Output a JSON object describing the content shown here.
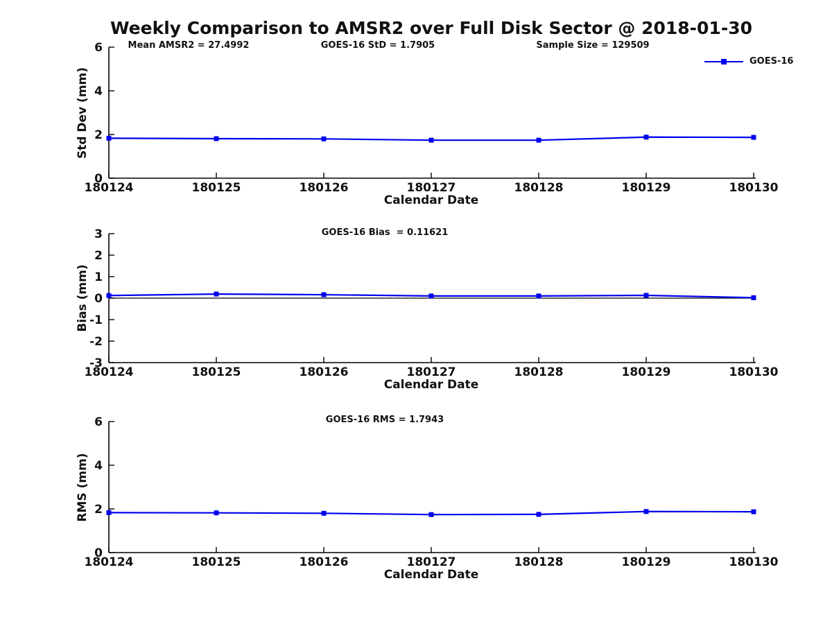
{
  "title": "Weekly Comparison to AMSR2 over Full Disk Sector @ 2018-01-30",
  "legend": {
    "label": "GOES-16",
    "color": "#0000EE"
  },
  "chart_data": [
    {
      "type": "line",
      "categories": [
        "180124",
        "180125",
        "180126",
        "180127",
        "180128",
        "180129",
        "180130"
      ],
      "series": [
        {
          "name": "GOES-16",
          "values": [
            1.83,
            1.81,
            1.8,
            1.74,
            1.74,
            1.88,
            1.87
          ]
        }
      ],
      "annotations": [
        "Mean AMSR2 = 27.4992",
        "GOES-16 StD = 1.7905",
        "Sample Size = 129509"
      ],
      "xlabel": "Calendar Date",
      "ylabel": "Std Dev (mm)",
      "ylim": [
        0,
        6
      ],
      "yticks": [
        0,
        2,
        4,
        6
      ],
      "zero_line": false,
      "grid": false,
      "legend_position": "top-right",
      "line_color": "#0000EE",
      "marker": "square"
    },
    {
      "type": "line",
      "categories": [
        "180124",
        "180125",
        "180126",
        "180127",
        "180128",
        "180129",
        "180130"
      ],
      "series": [
        {
          "name": "GOES-16",
          "values": [
            0.12,
            0.19,
            0.16,
            0.1,
            0.1,
            0.13,
            0.02
          ]
        }
      ],
      "annotations": [
        "GOES-16 Bias  = 0.11621"
      ],
      "xlabel": "Calendar Date",
      "ylabel": "Bias (mm)",
      "ylim": [
        -3,
        3
      ],
      "yticks": [
        -3,
        -2,
        -1,
        0,
        1,
        2,
        3
      ],
      "zero_line": true,
      "grid": false,
      "legend_position": "none",
      "line_color": "#0000EE",
      "marker": "square"
    },
    {
      "type": "line",
      "categories": [
        "180124",
        "180125",
        "180126",
        "180127",
        "180128",
        "180129",
        "180130"
      ],
      "series": [
        {
          "name": "GOES-16",
          "values": [
            1.83,
            1.82,
            1.8,
            1.74,
            1.75,
            1.88,
            1.87
          ]
        }
      ],
      "annotations": [
        "GOES-16 RMS = 1.7943"
      ],
      "xlabel": "Calendar Date",
      "ylabel": "RMS (mm)",
      "ylim": [
        0,
        6
      ],
      "yticks": [
        0,
        2,
        4,
        6
      ],
      "zero_line": false,
      "grid": false,
      "legend_position": "none",
      "line_color": "#0000EE",
      "marker": "square"
    }
  ]
}
